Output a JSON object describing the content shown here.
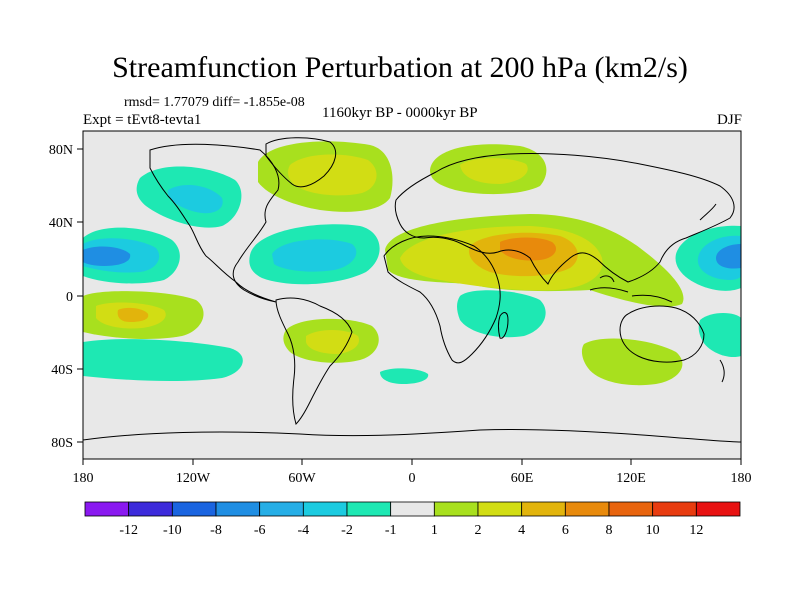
{
  "title": "Streamfunction Perturbation at 200 hPa (km2/s)",
  "stats": "rmsd= 1.77079 diff= -1.855e-08",
  "experiment": "Expt = tEvt8-tevta1",
  "period": "1160kyr BP - 0000kyr BP",
  "season": "DJF",
  "map": {
    "lat_ticks": [
      "80N",
      "40N",
      "0",
      "40S",
      "80S"
    ],
    "lon_ticks": [
      "180",
      "120W",
      "60W",
      "0",
      "60E",
      "120E",
      "180"
    ]
  },
  "colorbar": {
    "labels": [
      "-12",
      "-10",
      "-8",
      "-6",
      "-4",
      "-2",
      "-1",
      "1",
      "2",
      "4",
      "6",
      "8",
      "10",
      "12"
    ],
    "colors": [
      "#8a19f0",
      "#3d2bdb",
      "#1a64e0",
      "#1f8ee3",
      "#26aee6",
      "#1ccbe0",
      "#1ee8b3",
      "#e8e8e8",
      "#a8e01e",
      "#d2dd14",
      "#e2b40c",
      "#e88a0c",
      "#e8640e",
      "#e83c10",
      "#e81212"
    ]
  }
}
